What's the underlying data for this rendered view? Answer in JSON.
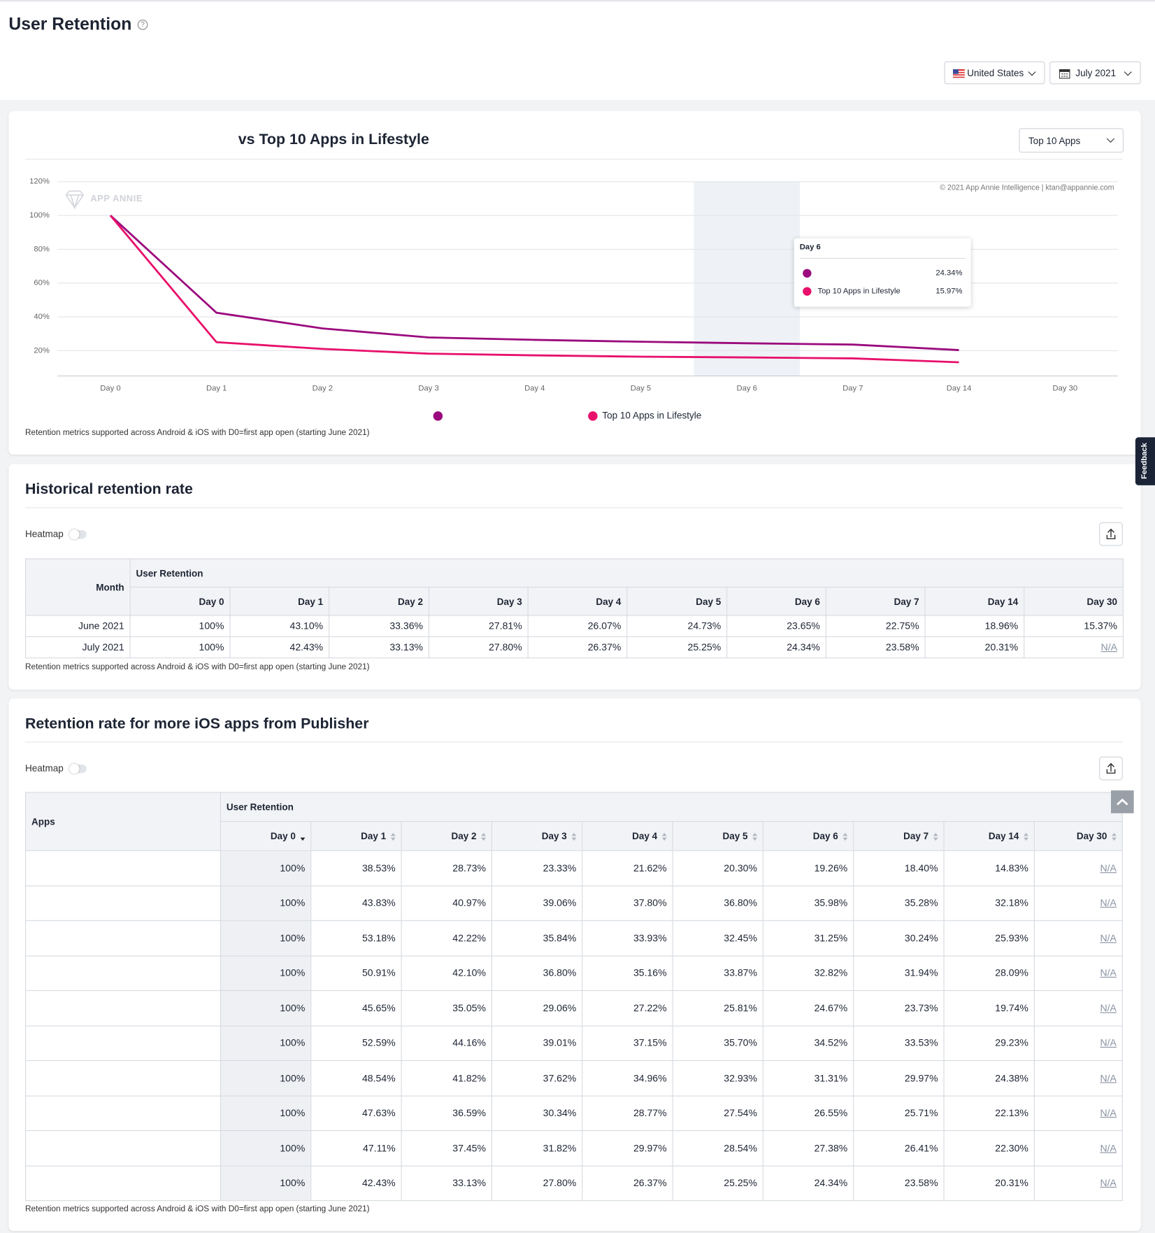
{
  "header": {
    "title": "User Retention",
    "country": "United States",
    "month": "July 2021"
  },
  "feedback": "Feedback",
  "chart_card": {
    "selector": "Top 10 Apps",
    "note": "Retention metrics supported across Android & iOS with D0=first app open (starting June 2021)"
  },
  "chart_data": {
    "type": "line",
    "title": "vs Top 10 Apps in Lifestyle",
    "watermark": "APP ANNIE",
    "credit": "© 2021 App Annie Intelligence | ktan@appannie.com",
    "categories": [
      "Day 0",
      "Day 1",
      "Day 2",
      "Day 3",
      "Day 4",
      "Day 5",
      "Day 6",
      "Day 7",
      "Day 14",
      "Day 30"
    ],
    "series": [
      {
        "color": "#9b0a7d",
        "values": [
          100,
          42.43,
          33.13,
          27.8,
          26.37,
          25.25,
          24.34,
          23.58,
          20.31,
          null
        ]
      },
      {
        "name": "Top 10 Apps in Lifestyle",
        "color": "#e8106b",
        "values": [
          100,
          25,
          21,
          18.2,
          17.2,
          16.4,
          15.97,
          15.4,
          13.1,
          null
        ]
      }
    ],
    "ylim": [
      5,
      120
    ],
    "yticks": [
      {
        "value": 20,
        "label": "20%"
      },
      {
        "value": 40,
        "label": "40%"
      },
      {
        "value": 60,
        "label": "60%"
      },
      {
        "value": 80,
        "label": "80%"
      },
      {
        "value": 100,
        "label": "100%"
      },
      {
        "value": 120,
        "label": "120%"
      }
    ],
    "grid": true,
    "tooltip": {
      "title": "Day 6",
      "labels": [
        "24.34%",
        "15.97%"
      ]
    }
  },
  "historical": {
    "title": "Historical retention rate",
    "heatmap": "Heatmap",
    "group": "User Retention",
    "columns": [
      "Month",
      "Day 0",
      "Day 1",
      "Day 2",
      "Day 3",
      "Day 4",
      "Day 5",
      "Day 6",
      "Day 7",
      "Day 14",
      "Day 30"
    ],
    "rows": [
      [
        "June 2021",
        "100%",
        "43.10%",
        "33.36%",
        "27.81%",
        "26.07%",
        "24.73%",
        "23.65%",
        "22.75%",
        "18.96%",
        "15.37%"
      ],
      [
        "July 2021",
        "100%",
        "42.43%",
        "33.13%",
        "27.80%",
        "26.37%",
        "25.25%",
        "24.34%",
        "23.58%",
        "20.31%",
        "N/A"
      ]
    ],
    "note": "Retention metrics supported across Android & iOS with D0=first app open (starting June 2021)"
  },
  "publisher": {
    "title": "Retention rate for more iOS apps from Publisher",
    "heatmap": "Heatmap",
    "group": "User Retention",
    "columns": [
      "Apps",
      "Day 0",
      "Day 1",
      "Day 2",
      "Day 3",
      "Day 4",
      "Day 5",
      "Day 6",
      "Day 7",
      "Day 14",
      "Day 30"
    ],
    "rows": [
      [
        "100%",
        "38.53%",
        "28.73%",
        "23.33%",
        "21.62%",
        "20.30%",
        "19.26%",
        "18.40%",
        "14.83%",
        "N/A"
      ],
      [
        "100%",
        "43.83%",
        "40.97%",
        "39.06%",
        "37.80%",
        "36.80%",
        "35.98%",
        "35.28%",
        "32.18%",
        "N/A"
      ],
      [
        "100%",
        "53.18%",
        "42.22%",
        "35.84%",
        "33.93%",
        "32.45%",
        "31.25%",
        "30.24%",
        "25.93%",
        "N/A"
      ],
      [
        "100%",
        "50.91%",
        "42.10%",
        "36.80%",
        "35.16%",
        "33.87%",
        "32.82%",
        "31.94%",
        "28.09%",
        "N/A"
      ],
      [
        "100%",
        "45.65%",
        "35.05%",
        "29.06%",
        "27.22%",
        "25.81%",
        "24.67%",
        "23.73%",
        "19.74%",
        "N/A"
      ],
      [
        "100%",
        "52.59%",
        "44.16%",
        "39.01%",
        "37.15%",
        "35.70%",
        "34.52%",
        "33.53%",
        "29.23%",
        "N/A"
      ],
      [
        "100%",
        "48.54%",
        "41.82%",
        "37.62%",
        "34.96%",
        "32.93%",
        "31.31%",
        "29.97%",
        "24.38%",
        "N/A"
      ],
      [
        "100%",
        "47.63%",
        "36.59%",
        "30.34%",
        "28.77%",
        "27.54%",
        "26.55%",
        "25.71%",
        "22.13%",
        "N/A"
      ],
      [
        "100%",
        "47.11%",
        "37.45%",
        "31.82%",
        "29.97%",
        "28.54%",
        "27.38%",
        "26.41%",
        "22.30%",
        "N/A"
      ],
      [
        "100%",
        "42.43%",
        "33.13%",
        "27.80%",
        "26.37%",
        "25.25%",
        "24.34%",
        "23.58%",
        "20.31%",
        "N/A"
      ]
    ],
    "note": "Retention metrics supported across Android & iOS with D0=first app open (starting June 2021)"
  }
}
